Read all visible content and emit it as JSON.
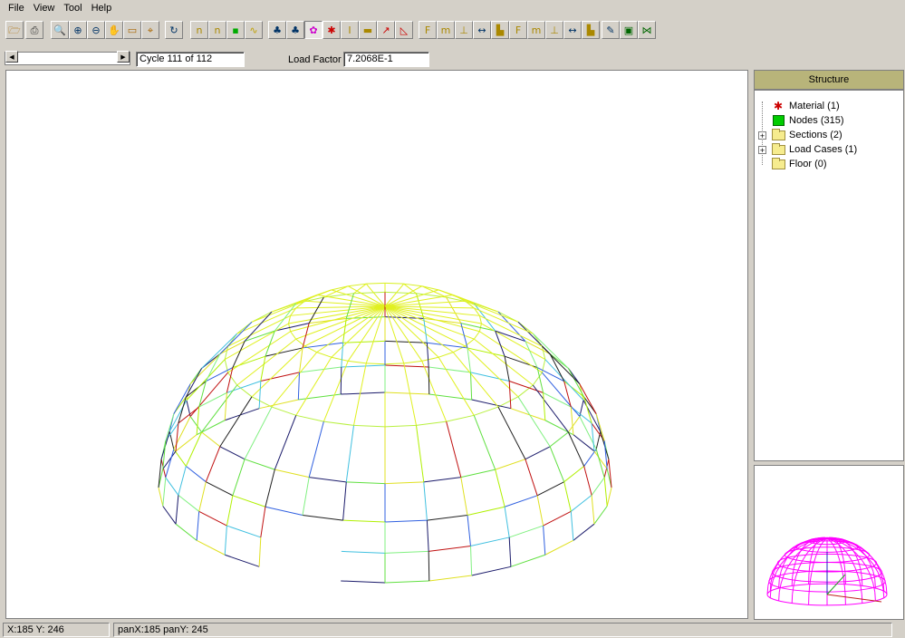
{
  "menu": {
    "file": "File",
    "view": "View",
    "tool": "Tool",
    "help": "Help"
  },
  "toolbar": {
    "icons": [
      "open-icon",
      "print-icon",
      "zoom-window-icon",
      "zoom-in-icon",
      "zoom-out-icon",
      "pan-hand-icon",
      "zoom-extent-icon",
      "zoom-fit-icon",
      "rotate-icon",
      "node-number-icon",
      "element-number-icon",
      "node-icon",
      "wave-icon",
      "structure-icon",
      "deformed-structure-icon",
      "section-color-icon",
      "material-icon",
      "section-i-icon",
      "scale-icon",
      "curve-icon",
      "angle-icon",
      "force-x-icon",
      "moment-icon",
      "support-icon",
      "dimension-icon",
      "load-icon",
      "force-arrow-icon",
      "moment-arrow-icon",
      "reaction-icon",
      "axis-icon",
      "chart-icon",
      "report-icon",
      "export-icon",
      "graph-icon"
    ],
    "pressed": [
      15
    ]
  },
  "controls": {
    "cycle": "Cycle 111 of 112",
    "load_factor_label": "Load Factor",
    "load_factor": "7.2068E-1"
  },
  "side": {
    "header": "Structure",
    "tree": [
      {
        "label": "Material (1)",
        "icon": "material-icon",
        "expandable": false
      },
      {
        "label": "Nodes (315)",
        "icon": "nodes-icon",
        "expandable": false
      },
      {
        "label": "Sections (2)",
        "icon": "folder-icon",
        "expandable": true
      },
      {
        "label": "Load Cases (1)",
        "icon": "folder-icon",
        "expandable": true
      },
      {
        "label": "Floor (0)",
        "icon": "folder-icon",
        "expandable": false
      }
    ]
  },
  "status": {
    "coords": "X:185  Y: 246",
    "pan": "panX:185  panY: 245"
  },
  "colors": {
    "dome_top": "#e8f000",
    "dome_mid": "#60e040",
    "preview_dome": "#ff00ff",
    "header_bg": "#b8b47a"
  }
}
